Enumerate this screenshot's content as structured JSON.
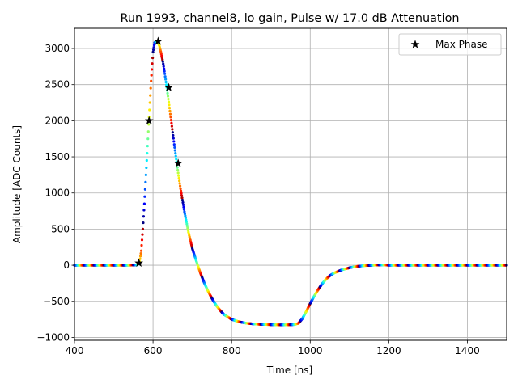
{
  "chart_data": {
    "type": "scatter",
    "title": "Run 1993, channel8, lo gain, Pulse w/ 17.0 dB Attenuation",
    "xlabel": "Time [ns]",
    "ylabel": "Amplitude [ADC Counts]",
    "xlim": [
      400,
      1500
    ],
    "ylim": [
      -1040,
      3280
    ],
    "xticks": [
      400,
      600,
      800,
      1000,
      1200,
      1400
    ],
    "yticks": [
      -1000,
      -500,
      0,
      500,
      1000,
      1500,
      2000,
      2500,
      3000
    ],
    "grid": true,
    "legend": {
      "position": "top-right",
      "entries": [
        "Max Phase"
      ]
    },
    "waveform": {
      "name": "pulse samples (colored by phase)",
      "x": [
        400,
        540,
        560,
        566,
        570,
        574,
        578,
        582,
        586,
        590,
        595,
        600,
        604,
        608,
        612,
        616,
        620,
        625,
        630,
        635,
        640,
        645,
        650,
        655,
        660,
        665,
        670,
        680,
        690,
        700,
        710,
        720,
        730,
        740,
        750,
        760,
        770,
        780,
        800,
        820,
        840,
        860,
        880,
        900,
        920,
        940,
        960,
        970,
        980,
        990,
        1000,
        1010,
        1020,
        1030,
        1040,
        1050,
        1060,
        1080,
        1100,
        1120,
        1140,
        1160,
        1180,
        1200,
        1250,
        1300,
        1400,
        1500
      ],
      "y": [
        0,
        0,
        5,
        50,
        200,
        500,
        850,
        1250,
        1650,
        2050,
        2550,
        2950,
        3080,
        3100,
        3090,
        3040,
        2950,
        2820,
        2650,
        2460,
        2260,
        2050,
        1840,
        1630,
        1430,
        1240,
        1060,
        740,
        460,
        230,
        60,
        -100,
        -240,
        -360,
        -460,
        -550,
        -620,
        -680,
        -750,
        -785,
        -805,
        -815,
        -820,
        -823,
        -825,
        -825,
        -822,
        -805,
        -740,
        -640,
        -530,
        -430,
        -340,
        -260,
        -195,
        -145,
        -110,
        -65,
        -35,
        -15,
        -5,
        0,
        5,
        0,
        0,
        0,
        0,
        0
      ]
    },
    "series": [
      {
        "name": "Max Phase",
        "marker": "star",
        "x": [
          564,
          590,
          613,
          640,
          664
        ],
        "y": [
          30,
          2000,
          3100,
          2460,
          1410
        ]
      }
    ]
  }
}
